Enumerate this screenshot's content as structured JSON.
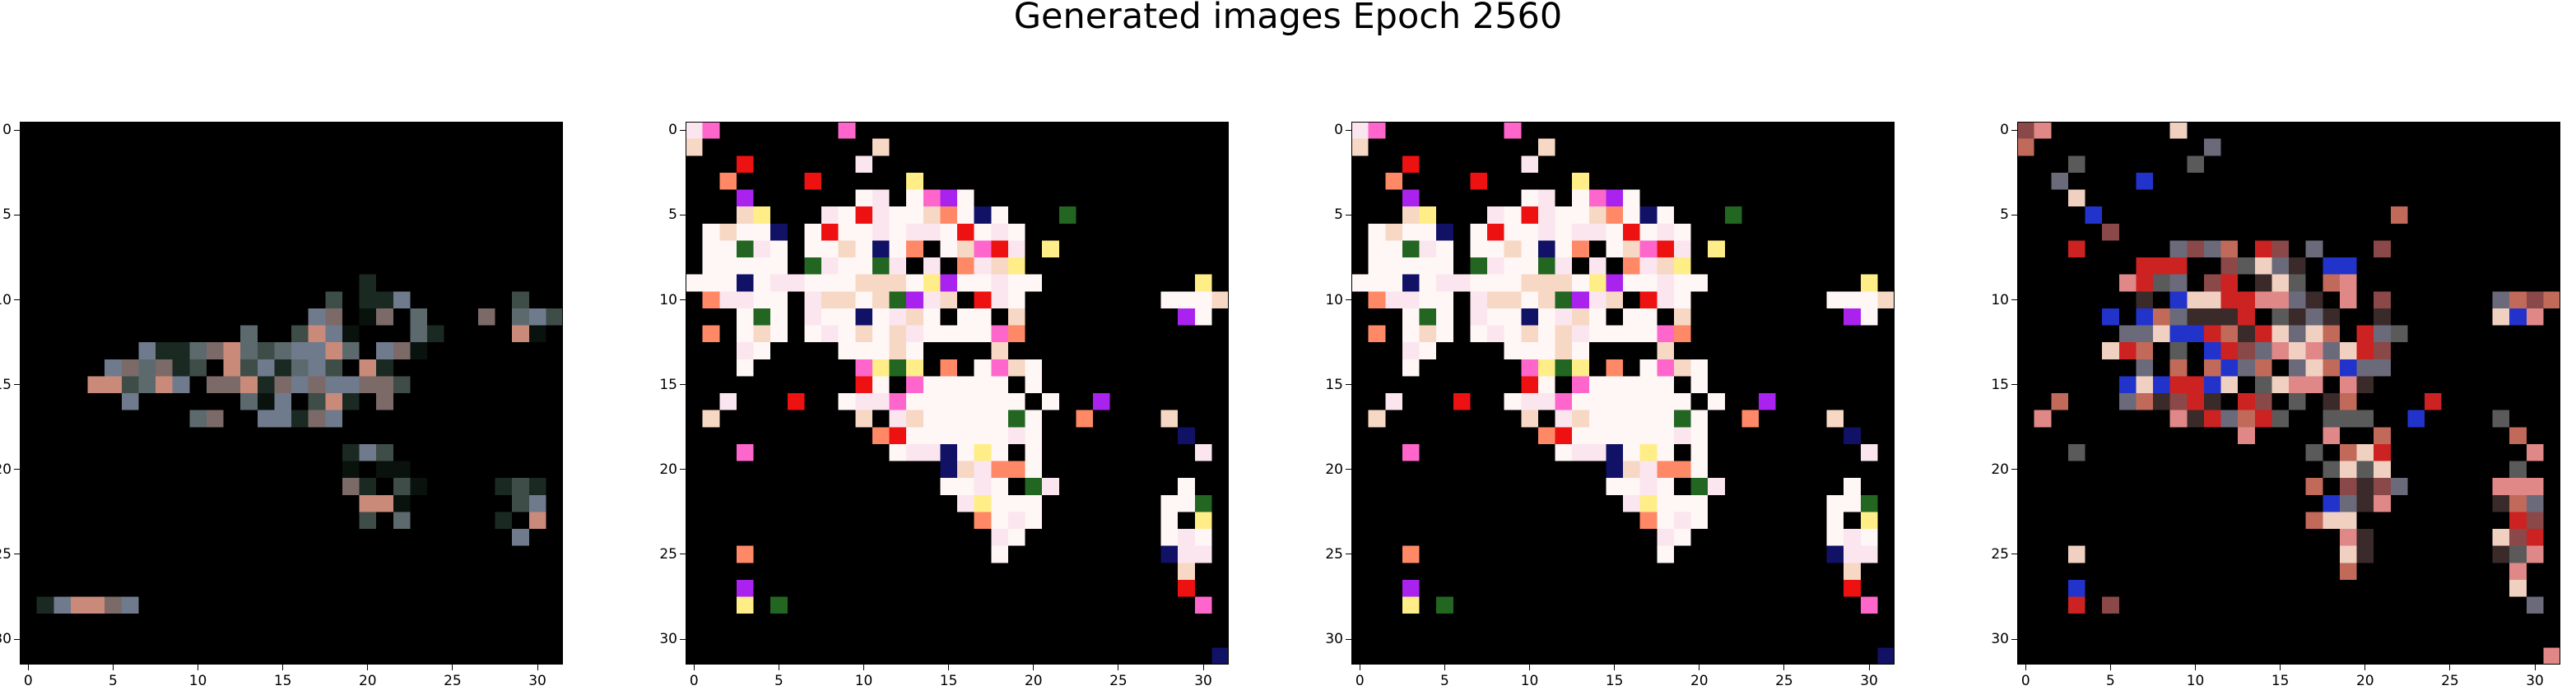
{
  "figure": {
    "title": "Generated images Epoch 2560"
  },
  "chart_data": {
    "type": "heatmap",
    "title": "Generated images Epoch 2560",
    "panels": 4,
    "image_shape": [
      32,
      32,
      3
    ],
    "x_ticks": [
      0,
      5,
      10,
      15,
      20,
      25,
      30
    ],
    "y_ticks": [
      0,
      5,
      10,
      15,
      20,
      25,
      30
    ],
    "xlim": [
      -0.5,
      31.5
    ],
    "ylim": [
      31.5,
      -0.5
    ],
    "background_color": "#000000",
    "panel_palettes": [
      [
        "#0a120d",
        "#1a2a22",
        "#3e4d48",
        "#5c6a6e",
        "#6f7a8c",
        "#7b6a68",
        "#c98a7a"
      ],
      [
        "#fff6f6",
        "#fbe6ef",
        "#f7d8c4",
        "#ff66cc",
        "#ee1111",
        "#ff8866",
        "#aa22ee",
        "#ffee88",
        "#226622",
        "#111166"
      ],
      [
        "#fff6f6",
        "#fbe6ef",
        "#f7d8c4",
        "#ff66cc",
        "#ee1111",
        "#ff8866",
        "#aa22ee",
        "#ffee88",
        "#226622",
        "#111166"
      ],
      [
        "#3a2a2a",
        "#8a4848",
        "#c26a5a",
        "#e08888",
        "#5a5a5a",
        "#6a6a7a",
        "#f0d0c0",
        "#2233cc",
        "#cc2222"
      ]
    ]
  }
}
